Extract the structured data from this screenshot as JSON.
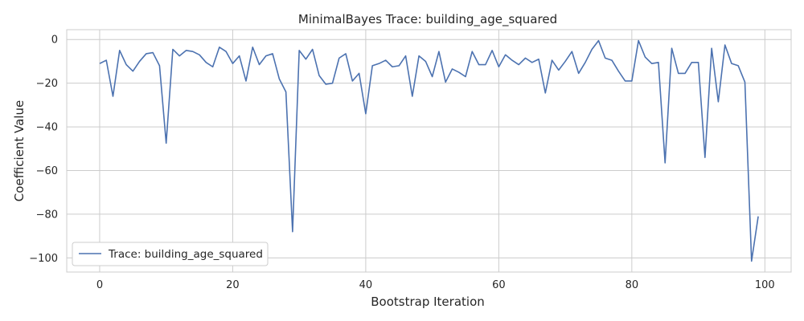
{
  "chart_data": {
    "type": "line",
    "title": "MinimalBayes Trace: building_age_squared",
    "xlabel": "Bootstrap Iteration",
    "ylabel": "Coefficient Value",
    "xlim": [
      -4.95,
      103.95
    ],
    "ylim": [
      -106.5,
      4.5
    ],
    "xticks": [
      0,
      20,
      40,
      60,
      80,
      100
    ],
    "yticks": [
      0,
      -20,
      -40,
      -60,
      -80,
      -100
    ],
    "grid": true,
    "legend_position": "lower-left",
    "colors": {
      "series": "#4c72b0",
      "grid": "#cccccc"
    },
    "series": [
      {
        "name": "Trace: building_age_squared",
        "x": [
          0,
          1,
          2,
          3,
          4,
          5,
          6,
          7,
          8,
          9,
          10,
          11,
          12,
          13,
          14,
          15,
          16,
          17,
          18,
          19,
          20,
          21,
          22,
          23,
          24,
          25,
          26,
          27,
          28,
          29,
          30,
          31,
          32,
          33,
          34,
          35,
          36,
          37,
          38,
          39,
          40,
          41,
          42,
          43,
          44,
          45,
          46,
          47,
          48,
          49,
          50,
          51,
          52,
          53,
          54,
          55,
          56,
          57,
          58,
          59,
          60,
          61,
          62,
          63,
          64,
          65,
          66,
          67,
          68,
          69,
          70,
          71,
          72,
          73,
          74,
          75,
          76,
          77,
          78,
          79,
          80,
          81,
          82,
          83,
          84,
          85,
          86,
          87,
          88,
          89,
          90,
          91,
          92,
          93,
          94,
          95,
          96,
          97,
          98,
          99
        ],
        "values": [
          -11,
          -9.5,
          -26,
          -5,
          -11.5,
          -14.5,
          -10,
          -6.5,
          -6,
          -12,
          -47.5,
          -4.5,
          -7.5,
          -5,
          -5.5,
          -7,
          -10.5,
          -12.5,
          -3.5,
          -5.5,
          -11,
          -7.5,
          -19,
          -3.5,
          -11.5,
          -7.5,
          -6.5,
          -18,
          -24,
          -88,
          -5,
          -9,
          -4.5,
          -16.5,
          -20.5,
          -20,
          -8.5,
          -6.5,
          -19,
          -15.5,
          -34,
          -12,
          -11,
          -9.5,
          -12.5,
          -12,
          -7.5,
          -26,
          -7.5,
          -10,
          -17,
          -5.5,
          -19.5,
          -13.5,
          -15,
          -17,
          -5.5,
          -11.5,
          -11.5,
          -5,
          -12.5,
          -7,
          -9.5,
          -11.5,
          -8.5,
          -10.5,
          -9,
          -24.5,
          -9.5,
          -14,
          -10,
          -5.5,
          -15.5,
          -10.5,
          -4.5,
          -0.5,
          -8.5,
          -9.5,
          -14.5,
          -19,
          -19,
          -0.5,
          -8,
          -11,
          -10.5,
          -56.5,
          -4,
          -15.5,
          -15.5,
          -10.5,
          -10.5,
          -54,
          -4,
          -28.5,
          -2.5,
          -11,
          -12,
          -19.5,
          -101.5,
          -81
        ]
      }
    ]
  }
}
